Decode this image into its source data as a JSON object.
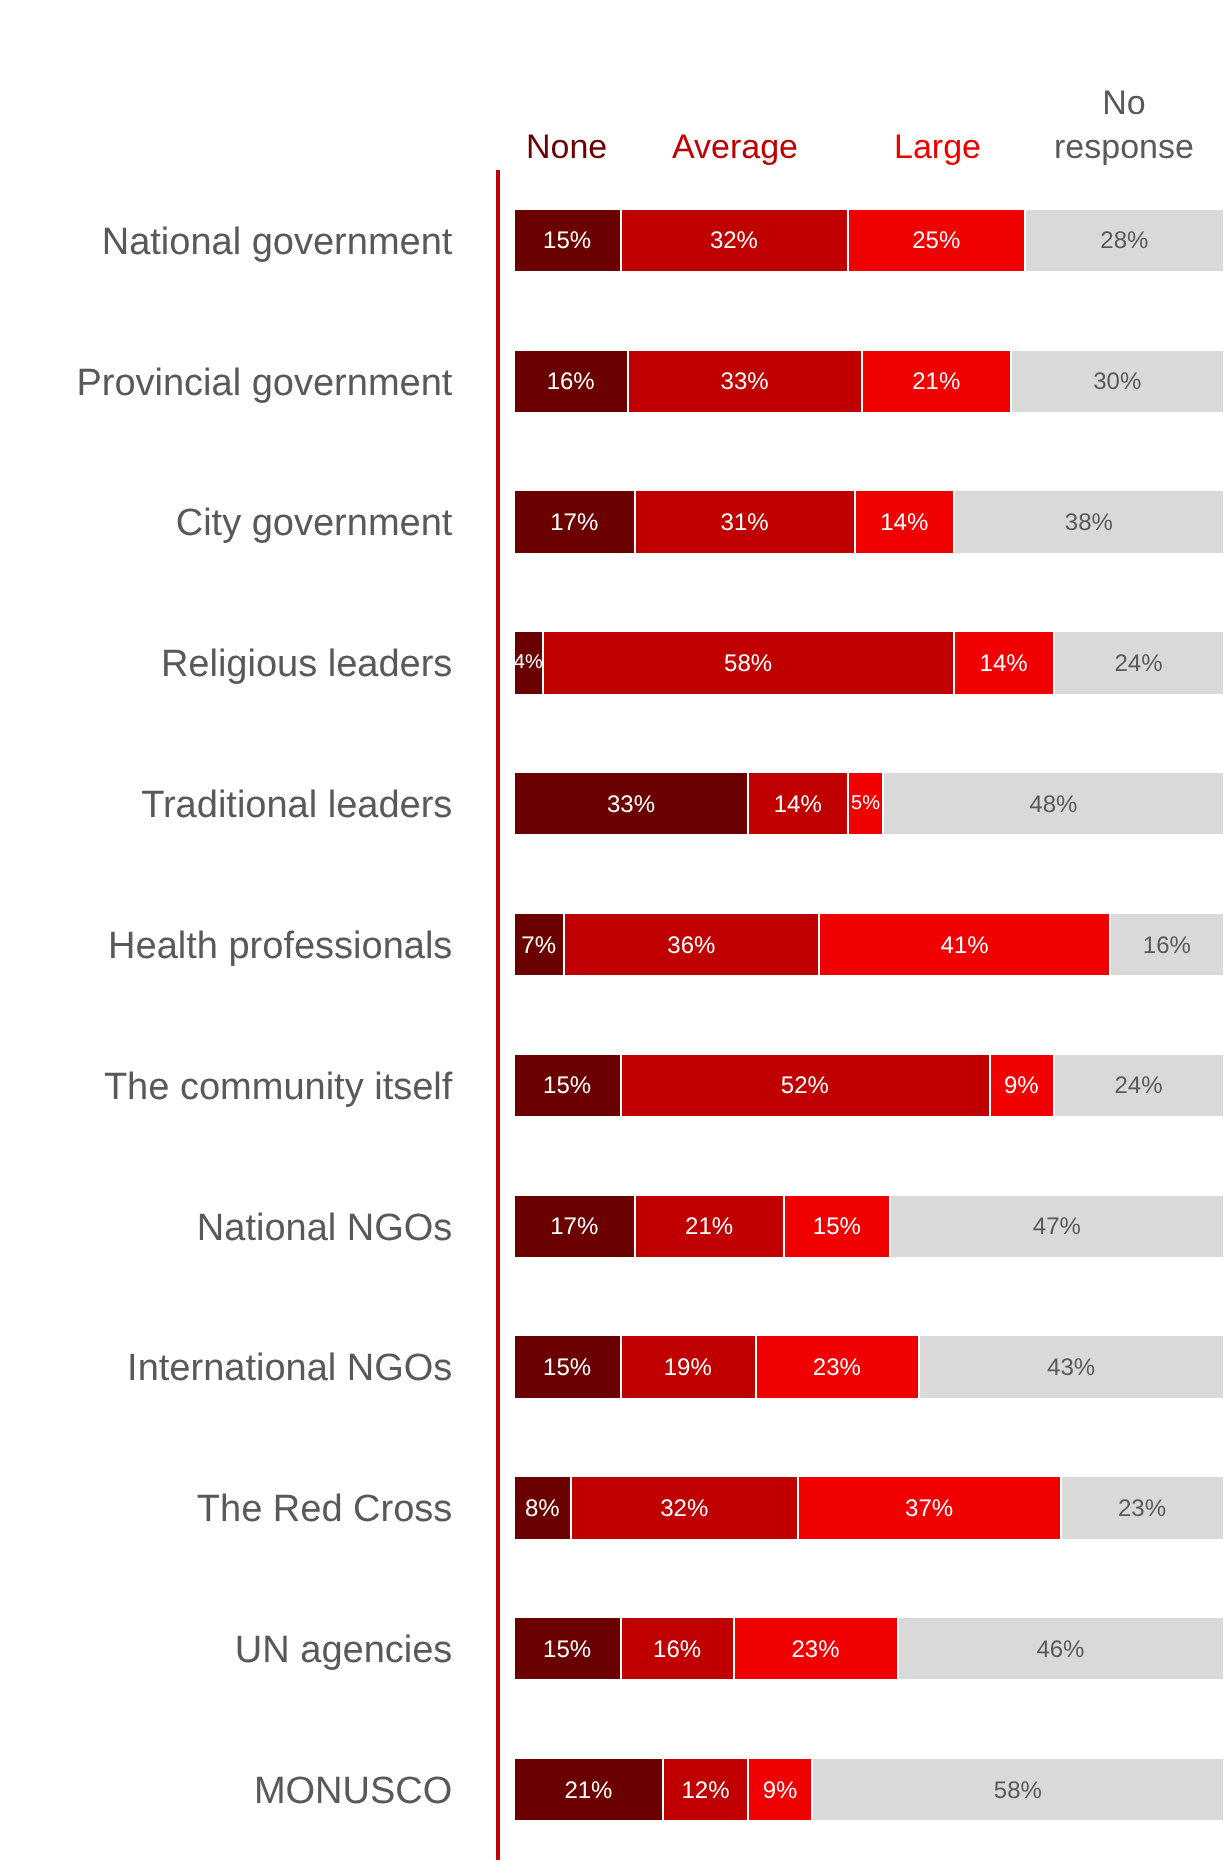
{
  "chart_data": {
    "type": "bar",
    "orientation": "horizontal",
    "stacked": true,
    "categories": [
      "National government",
      "Provincial government",
      "City government",
      "Religious leaders",
      "Traditional leaders",
      "Health professionals",
      "The community itself",
      "National NGOs",
      "International NGOs",
      "The Red Cross",
      "UN agencies",
      "MONUSCO"
    ],
    "series": [
      {
        "name": "None",
        "color": "#6b0000",
        "values": [
          15,
          16,
          17,
          4,
          33,
          7,
          15,
          17,
          15,
          8,
          15,
          21
        ],
        "value_labels": [
          "15%",
          "16%",
          "17%",
          "4%",
          "33%",
          "7%",
          "15%",
          "17%",
          "15%",
          "8%",
          "15%",
          "21%"
        ]
      },
      {
        "name": "Average",
        "color": "#c00000",
        "values": [
          32,
          33,
          31,
          58,
          14,
          36,
          52,
          21,
          19,
          32,
          16,
          12
        ],
        "value_labels": [
          "32%",
          "33%",
          "31%",
          "58%",
          "14%",
          "36%",
          "52%",
          "21%",
          "19%",
          "32%",
          "16%",
          "12%"
        ]
      },
      {
        "name": "Large",
        "color": "#f00000",
        "values": [
          25,
          21,
          14,
          14,
          5,
          41,
          9,
          15,
          23,
          37,
          23,
          9
        ],
        "value_labels": [
          "25%",
          "21%",
          "14%",
          "14%",
          "5%",
          "41%",
          "9%",
          "15%",
          "23%",
          "37%",
          "23%",
          "9%"
        ]
      },
      {
        "name": "No response",
        "color": "#d9d9d9",
        "values": [
          28,
          30,
          38,
          24,
          48,
          16,
          24,
          47,
          43,
          23,
          46,
          58
        ],
        "value_labels": [
          "28%",
          "30%",
          "38%",
          "24%",
          "48%",
          "16%",
          "24%",
          "47%",
          "43%",
          "23%",
          "46%",
          "58%"
        ]
      }
    ]
  }
}
